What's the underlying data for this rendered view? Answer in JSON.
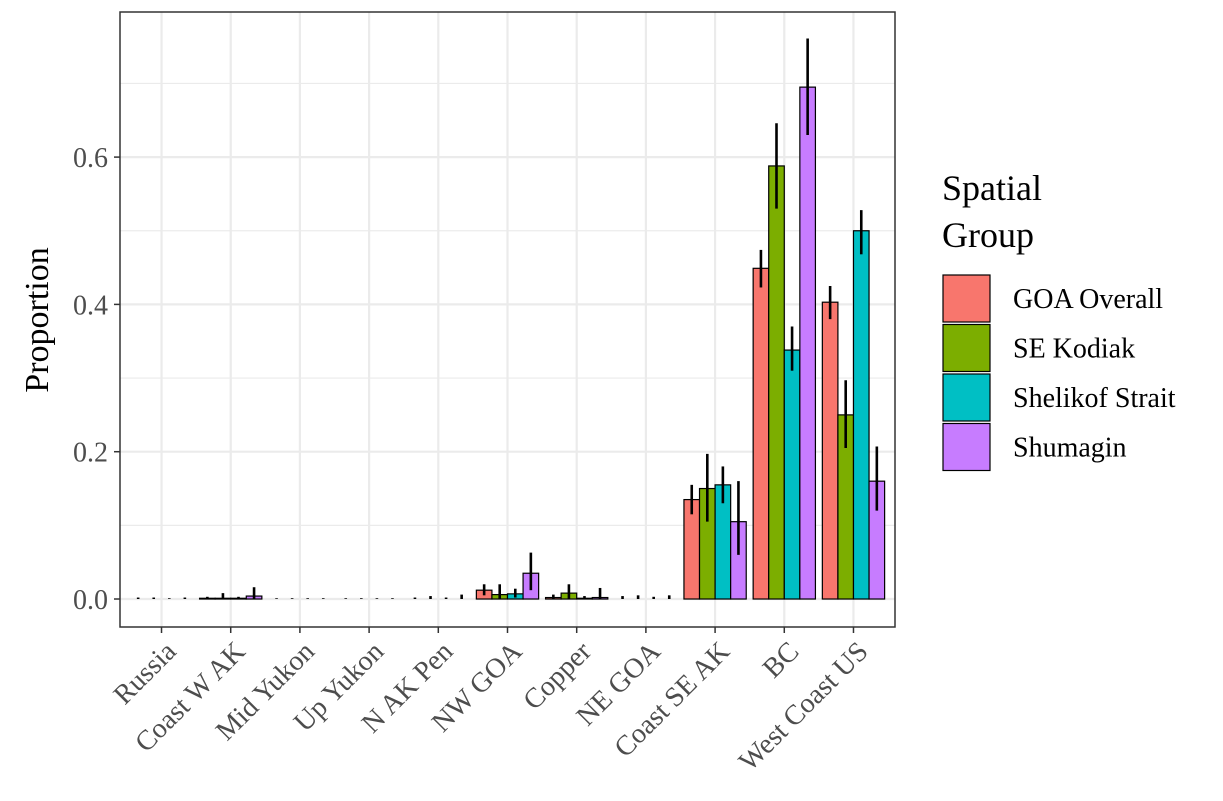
{
  "chart_data": {
    "type": "bar",
    "y_label": "Proportion",
    "legend_title": "Spatial Group",
    "legend_position": "right",
    "grid": true,
    "ylim": [
      -0.038,
      0.797
    ],
    "yticks": [
      {
        "value": 0,
        "label": "0.0"
      },
      0.2,
      0.4,
      0.6
    ],
    "y_minor_grid": [
      0.1,
      0.3,
      0.5,
      0.7
    ],
    "categories": [
      "Russia",
      "Coast W AK",
      "Mid Yukon",
      "Up Yukon",
      "N AK Pen",
      "NW GOA",
      "Copper",
      "NE GOA",
      "Coast SE AK",
      "BC",
      "West Coast US"
    ],
    "series": [
      {
        "name": "GOA Overall",
        "color": "#F8766D",
        "values": [
          0,
          0.001,
          0,
          0,
          0,
          0.012,
          0.002,
          0,
          0.135,
          0.449,
          0.403
        ],
        "lower": [
          0,
          0,
          0,
          0,
          0,
          0.005,
          0,
          0,
          0.115,
          0.423,
          0.38
        ],
        "upper": [
          0.002,
          0.003,
          0.001,
          0.001,
          0.002,
          0.02,
          0.006,
          0.004,
          0.155,
          0.474,
          0.425
        ]
      },
      {
        "name": "SE Kodiak",
        "color": "#7CAE00",
        "values": [
          0,
          0.001,
          0,
          0,
          0,
          0.006,
          0.008,
          0,
          0.15,
          0.588,
          0.25
        ],
        "lower": [
          0,
          0,
          0,
          0,
          0,
          0,
          0,
          0,
          0.105,
          0.53,
          0.205
        ],
        "upper": [
          0.002,
          0.008,
          0.001,
          0.001,
          0.004,
          0.02,
          0.02,
          0.005,
          0.197,
          0.646,
          0.297
        ]
      },
      {
        "name": "Shelikof Strait",
        "color": "#00BFC4",
        "values": [
          0,
          0.001,
          0,
          0,
          0,
          0.007,
          0.001,
          0,
          0.155,
          0.338,
          0.5
        ],
        "lower": [
          0,
          0,
          0,
          0,
          0,
          0.002,
          0,
          0,
          0.13,
          0.31,
          0.468
        ],
        "upper": [
          0.001,
          0.003,
          0.001,
          0.001,
          0.002,
          0.014,
          0.004,
          0.003,
          0.18,
          0.37,
          0.528
        ]
      },
      {
        "name": "Shumagin",
        "color": "#C77CFF",
        "values": [
          0,
          0.004,
          0,
          0,
          0,
          0.035,
          0.002,
          0,
          0.105,
          0.695,
          0.16
        ],
        "lower": [
          0,
          0,
          0,
          0,
          0,
          0.012,
          0,
          0,
          0.06,
          0.63,
          0.12
        ],
        "upper": [
          0.002,
          0.016,
          0.001,
          0.001,
          0.006,
          0.063,
          0.015,
          0.005,
          0.16,
          0.761,
          0.207
        ]
      }
    ]
  }
}
